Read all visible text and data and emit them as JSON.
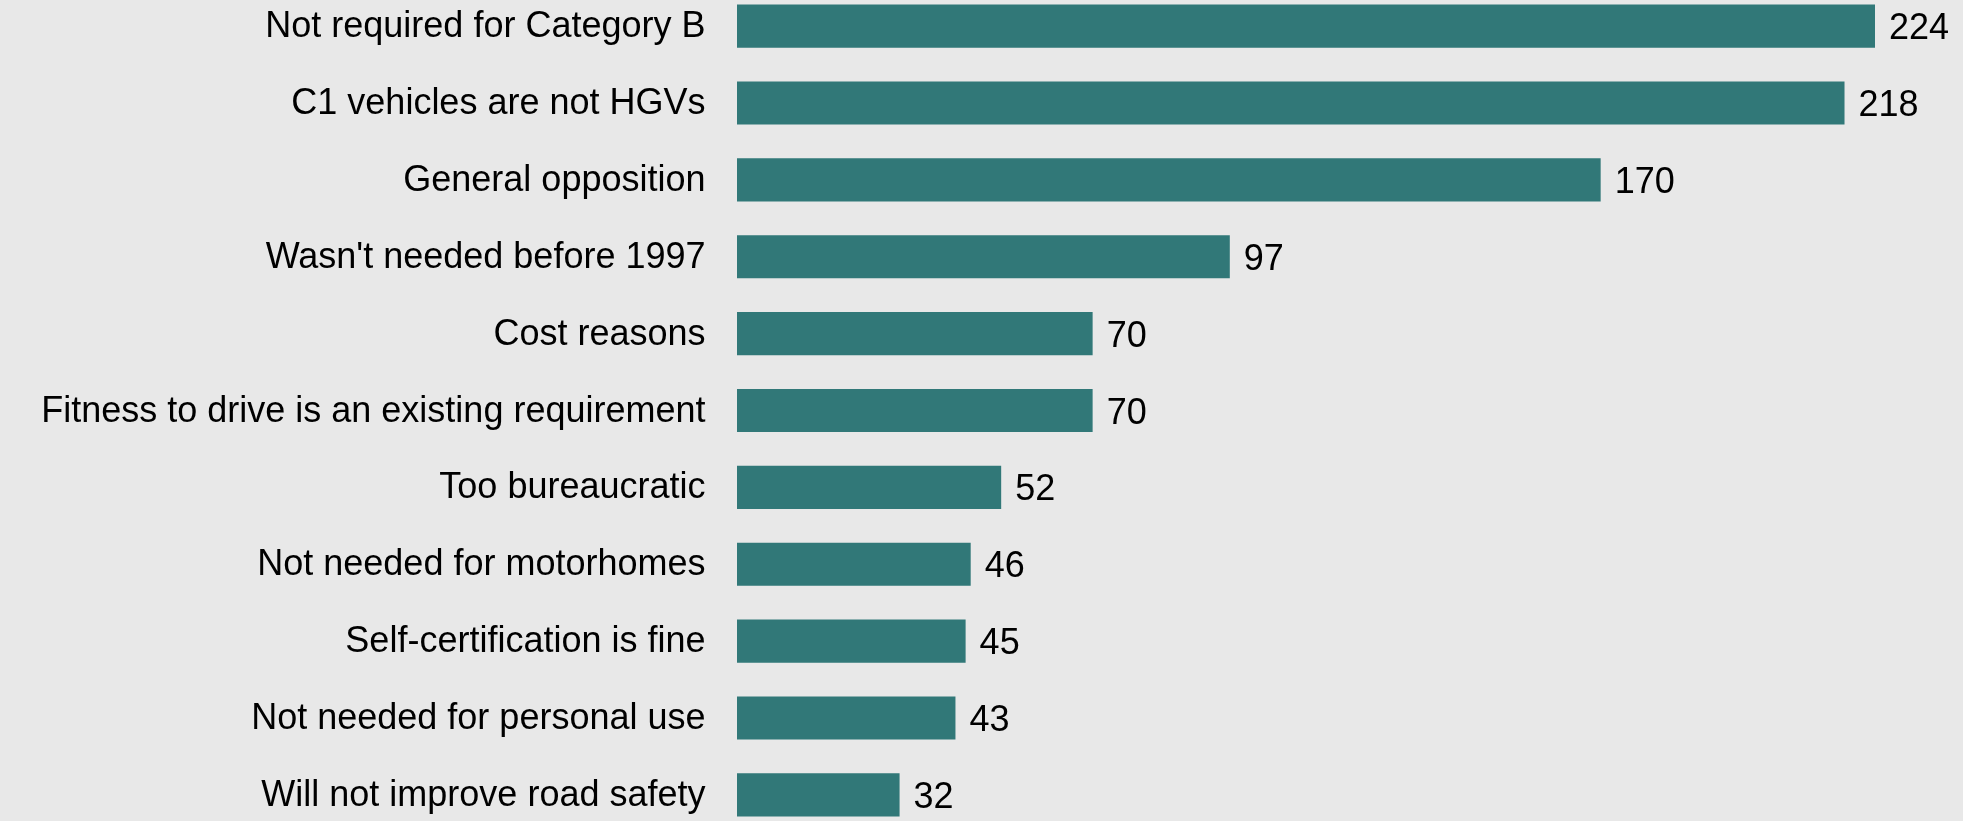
{
  "chart_data": {
    "type": "bar",
    "orientation": "horizontal",
    "categories": [
      "Not required for Category B",
      "C1 vehicles are not HGVs",
      "General opposition",
      "Wasn't needed before 1997",
      "Cost reasons",
      "Fitness to drive is an existing requirement",
      "Too bureaucratic",
      "Not needed for motorhomes",
      "Self-certification is fine",
      "Not needed for personal use",
      "Will not improve road safety"
    ],
    "values": [
      224,
      218,
      170,
      97,
      70,
      70,
      52,
      46,
      45,
      43,
      32
    ],
    "color": "#317878",
    "data_labels": true
  }
}
